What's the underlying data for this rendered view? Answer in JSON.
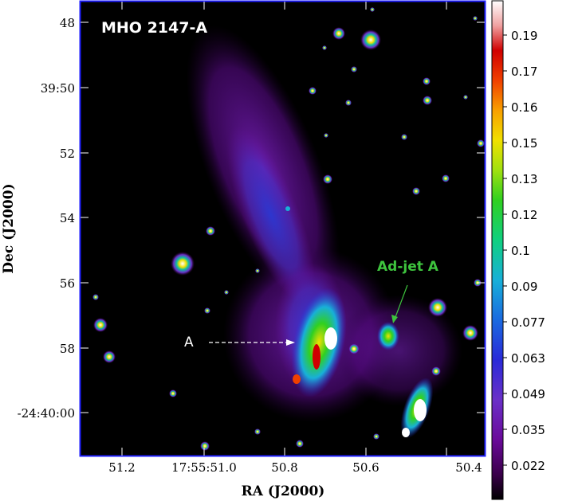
{
  "chart_data": {
    "type": "heatmap",
    "title": "MHO 2147-A",
    "xlabel": "RA (J2000)",
    "ylabel": "Dec (J2000)",
    "x_ticks": [
      "51.2",
      "17:55:51.0",
      "50.8",
      "50.6",
      "50.4"
    ],
    "y_ticks": [
      "48",
      "39:50",
      "52",
      "54",
      "56",
      "58",
      "-24:40:00"
    ],
    "colorbar": {
      "ticks": [
        "0.19",
        "0.17",
        "0.16",
        "0.15",
        "0.13",
        "0.12",
        "0.1",
        "0.09",
        "0.077",
        "0.063",
        "0.049",
        "0.035",
        "0.022"
      ],
      "colors": [
        "#000000",
        "#3a004a",
        "#6a0a9a",
        "#6a30c8",
        "#2a2ad8",
        "#1a6ae0",
        "#18b0d8",
        "#10d080",
        "#30d020",
        "#a0e010",
        "#f0e000",
        "#f8a000",
        "#f04000",
        "#d00000",
        "#f0a0a0",
        "#ffffff"
      ]
    },
    "annotations": [
      {
        "text": "A"
      },
      {
        "text": "Ad-jet A"
      }
    ]
  },
  "colors": {
    "frame": "#2020ff",
    "image_background": "#000000",
    "jet_label": "#3ec43e"
  }
}
